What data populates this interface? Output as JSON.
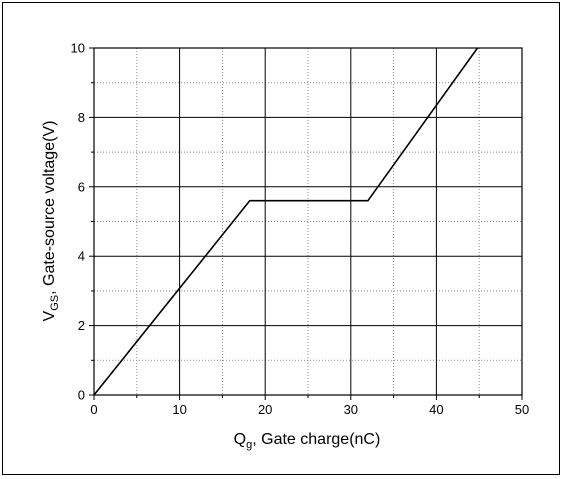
{
  "chart_data": {
    "type": "line",
    "x_label": {
      "main": "Q",
      "sub": "g",
      "rest": ", Gate charge(nC)"
    },
    "y_label": {
      "main": "V",
      "sub": "GS",
      "rest": ", Gate-source voltage(V)"
    },
    "xlim": [
      0,
      50
    ],
    "ylim": [
      0,
      10
    ],
    "x_ticks": [
      "0",
      "10",
      "20",
      "30",
      "40",
      "50"
    ],
    "y_ticks": [
      "0",
      "2",
      "4",
      "6",
      "8",
      "10"
    ],
    "grid": {
      "major": true,
      "minor_dotted": true
    },
    "series": [
      {
        "x": [
          0,
          18.2,
          32,
          44.8
        ],
        "y": [
          0,
          5.6,
          5.6,
          10
        ],
        "color": "#000000"
      }
    ]
  }
}
